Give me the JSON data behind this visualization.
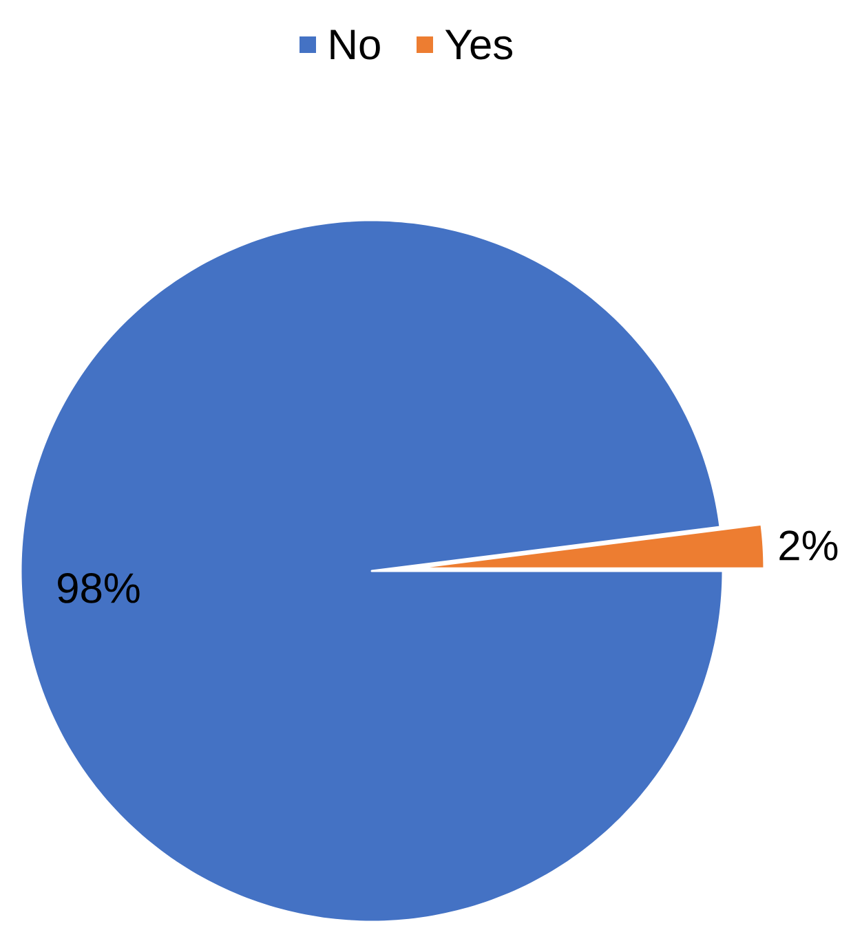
{
  "chart_data": {
    "type": "pie",
    "categories": [
      "No",
      "Yes"
    ],
    "values": [
      98,
      2
    ],
    "colors": [
      "#4472c4",
      "#ed7d31"
    ],
    "value_labels": [
      "98%",
      "2%"
    ],
    "legend": "top"
  }
}
